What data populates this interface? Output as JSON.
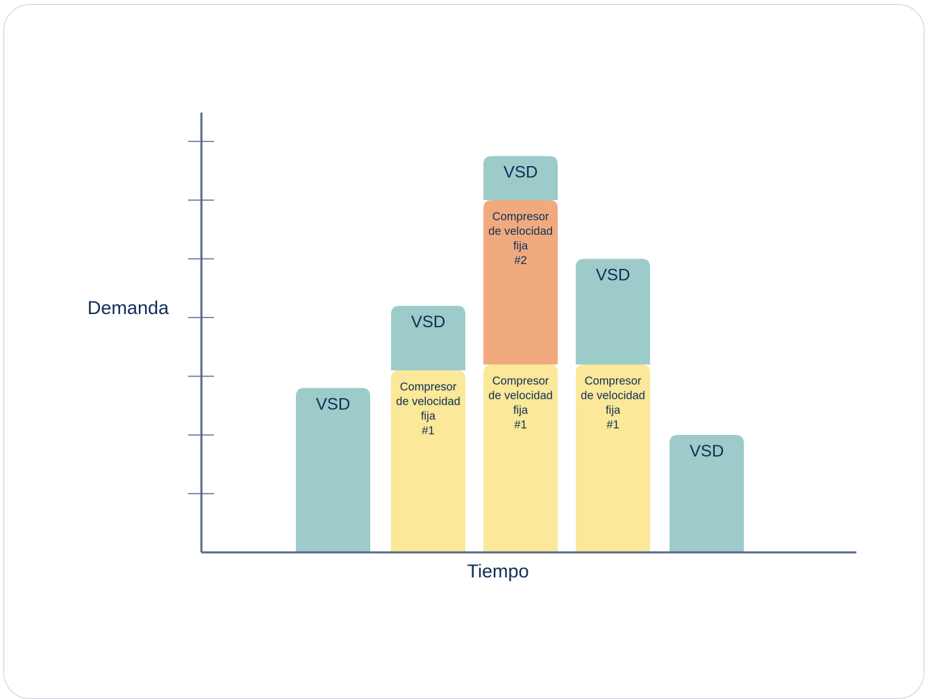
{
  "chart_data": {
    "type": "bar",
    "stacked": true,
    "xlabel": "Tiempo",
    "ylabel": "Demanda",
    "y_ticks": 7,
    "grid": false,
    "colors": {
      "vsd": "#9ccbca",
      "fixed1": "#fbe898",
      "fixed2": "#f1aa80",
      "axis": "#5b6b8c",
      "text": "#0e2f55"
    },
    "series": [
      {
        "key": "fixed1",
        "label": [
          "Compresor",
          "de velocidad",
          "fija",
          "#1"
        ],
        "values": [
          0,
          3.1,
          3.2,
          3.2,
          0
        ]
      },
      {
        "key": "fixed2",
        "label": [
          "Compresor",
          "de velocidad",
          "fija",
          "#2"
        ],
        "values": [
          0,
          0,
          2.8,
          0,
          0
        ]
      },
      {
        "key": "vsd",
        "label": [
          "VSD"
        ],
        "values": [
          2.8,
          1.1,
          0.75,
          1.8,
          2.0
        ]
      }
    ]
  }
}
